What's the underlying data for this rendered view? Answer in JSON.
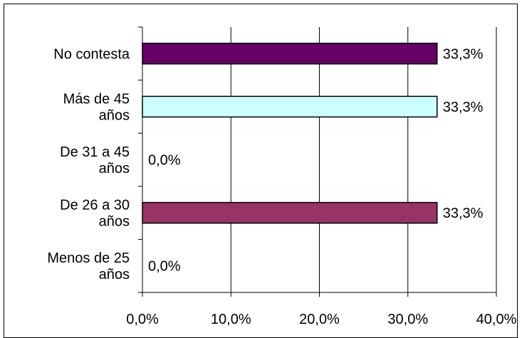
{
  "chart_data": {
    "type": "bar",
    "orientation": "horizontal",
    "categories": [
      [
        "No contesta"
      ],
      [
        "Más de 45",
        "años"
      ],
      [
        "De 31 a 45",
        "años"
      ],
      [
        "De 26 a 30",
        "años"
      ],
      [
        "Menos de 25",
        "años"
      ]
    ],
    "values": [
      33.3,
      33.3,
      0.0,
      33.3,
      0.0
    ],
    "value_labels": [
      "33,3%",
      "33,3%",
      "0,0%",
      "33,3%",
      "0,0%"
    ],
    "bar_colors": [
      "#660066",
      "#ccffff",
      "#ffffff",
      "#993366",
      "#ffffff"
    ],
    "xlim": [
      0,
      40
    ],
    "xticks": [
      0,
      10,
      20,
      30,
      40
    ],
    "xtick_labels": [
      "0,0%",
      "10,0%",
      "20,0%",
      "30,0%",
      "40,0%"
    ],
    "title": "",
    "xlabel": "",
    "ylabel": "",
    "grid": "vertical",
    "legend": "none"
  }
}
